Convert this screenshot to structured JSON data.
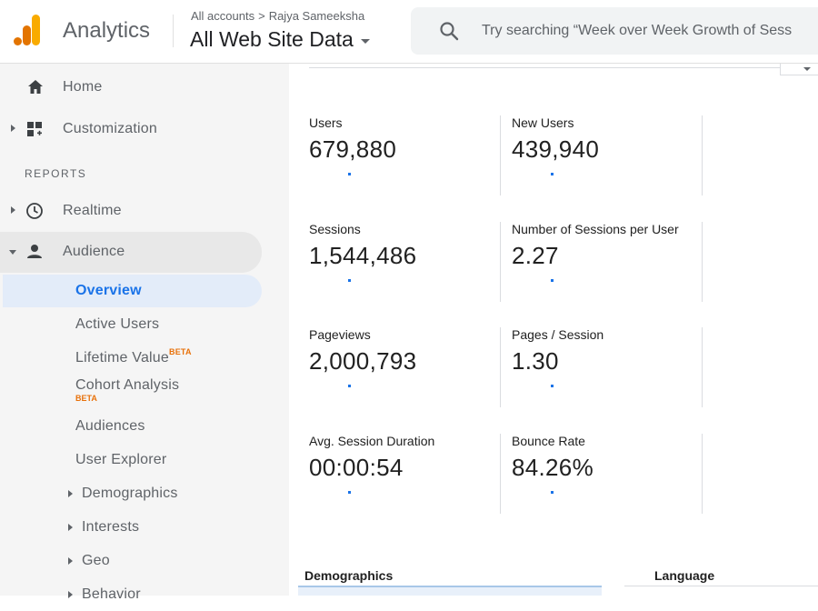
{
  "header": {
    "app_title": "Analytics",
    "account_crumb": [
      "All accounts",
      "Rajya Sameeksha"
    ],
    "property": "All Web Site Data",
    "search_placeholder": "Try searching “Week over Week Growth of Sess"
  },
  "sidebar": {
    "items": [
      {
        "label": "Home",
        "icon": "home-icon"
      },
      {
        "label": "Customization",
        "icon": "dashboard-plus-icon"
      }
    ],
    "reports_header": "REPORTS",
    "reports": [
      {
        "label": "Realtime",
        "icon": "clock-icon"
      },
      {
        "label": "Audience",
        "icon": "person-icon"
      }
    ],
    "audience_sub": [
      {
        "label": "Overview"
      },
      {
        "label": "Active Users"
      },
      {
        "label": "Lifetime Value",
        "badge": "BETA"
      },
      {
        "label": "Cohort Analysis",
        "badge": "BETA"
      },
      {
        "label": "Audiences"
      },
      {
        "label": "User Explorer"
      },
      {
        "label": "Demographics"
      },
      {
        "label": "Interests"
      },
      {
        "label": "Geo"
      },
      {
        "label": "Behavior"
      }
    ]
  },
  "metrics": [
    {
      "label": "Users",
      "value": "679,880"
    },
    {
      "label": "New Users",
      "value": "439,940"
    },
    {
      "label": "Sessions",
      "value": "1,544,486"
    },
    {
      "label": "Number of Sessions per User",
      "value": "2.27"
    },
    {
      "label": "Pageviews",
      "value": "2,000,793"
    },
    {
      "label": "Pages / Session",
      "value": "1.30"
    },
    {
      "label": "Avg. Session Duration",
      "value": "00:00:54"
    },
    {
      "label": "Bounce Rate",
      "value": "84.26%"
    }
  ],
  "sections": {
    "demographics": "Demographics",
    "language": "Language"
  },
  "colors": {
    "accent": "#1a73e8",
    "beta": "#e8710a",
    "logo_orange": "#f9ab00",
    "logo_dark": "#e37400"
  }
}
